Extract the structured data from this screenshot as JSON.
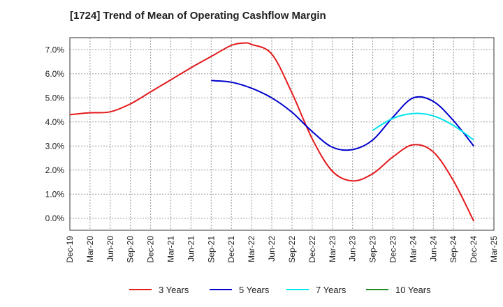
{
  "chart_data": {
    "type": "line",
    "title": "[1724]  Trend of Mean of Operating Cashflow Margin",
    "xlabel": "",
    "ylabel": "",
    "x_ticks": [
      "Dec-19",
      "Mar-20",
      "Jun-20",
      "Sep-20",
      "Dec-20",
      "Mar-21",
      "Jun-21",
      "Sep-21",
      "Dec-21",
      "Mar-22",
      "Jun-22",
      "Sep-22",
      "Dec-22",
      "Mar-23",
      "Jun-23",
      "Sep-23",
      "Dec-23",
      "Mar-24",
      "Jun-24",
      "Sep-24",
      "Dec-24",
      "Mar-25"
    ],
    "y_ticks": [
      "0.0%",
      "1.0%",
      "2.0%",
      "3.0%",
      "4.0%",
      "5.0%",
      "6.0%",
      "7.0%"
    ],
    "ylim": [
      -0.5,
      7.5
    ],
    "grid": true,
    "legend_position": "bottom",
    "series": [
      {
        "name": "3 Years",
        "color": "#e41a1c",
        "points": [
          [
            "Dec-19",
            4.3
          ],
          [
            "Mar-20",
            4.38
          ],
          [
            "Jun-20",
            4.42
          ],
          [
            "Sep-20",
            4.75
          ],
          [
            "Dec-20",
            5.25
          ],
          [
            "Mar-21",
            5.75
          ],
          [
            "Jun-21",
            6.25
          ],
          [
            "Sep-21",
            6.72
          ],
          [
            "Dec-21",
            7.18
          ],
          [
            "Feb-22",
            7.28
          ],
          [
            "Mar-22",
            7.22
          ],
          [
            "Jun-22",
            6.82
          ],
          [
            "Sep-22",
            5.2
          ],
          [
            "Dec-22",
            3.3
          ],
          [
            "Mar-23",
            1.95
          ],
          [
            "Jun-23",
            1.55
          ],
          [
            "Sep-23",
            1.85
          ],
          [
            "Dec-23",
            2.55
          ],
          [
            "Mar-24",
            3.05
          ],
          [
            "Jun-24",
            2.75
          ],
          [
            "Sep-24",
            1.55
          ],
          [
            "Dec-24",
            -0.12
          ]
        ]
      },
      {
        "name": "5 Years",
        "color": "#0000cd",
        "points": [
          [
            "Sep-21",
            5.72
          ],
          [
            "Dec-21",
            5.65
          ],
          [
            "Mar-22",
            5.4
          ],
          [
            "Jun-22",
            5.0
          ],
          [
            "Sep-22",
            4.4
          ],
          [
            "Dec-22",
            3.6
          ],
          [
            "Mar-23",
            2.95
          ],
          [
            "Jun-23",
            2.85
          ],
          [
            "Sep-23",
            3.25
          ],
          [
            "Dec-23",
            4.2
          ],
          [
            "Mar-24",
            5.0
          ],
          [
            "Jun-24",
            4.85
          ],
          [
            "Sep-24",
            4.05
          ],
          [
            "Dec-24",
            3.0
          ]
        ]
      },
      {
        "name": "7 Years",
        "color": "#00e5ee",
        "points": [
          [
            "Sep-23",
            3.65
          ],
          [
            "Dec-23",
            4.15
          ],
          [
            "Mar-24",
            4.35
          ],
          [
            "Jun-24",
            4.25
          ],
          [
            "Sep-24",
            3.85
          ],
          [
            "Dec-24",
            3.25
          ]
        ]
      },
      {
        "name": "10 Years",
        "color": "#228b22",
        "points": []
      }
    ]
  }
}
